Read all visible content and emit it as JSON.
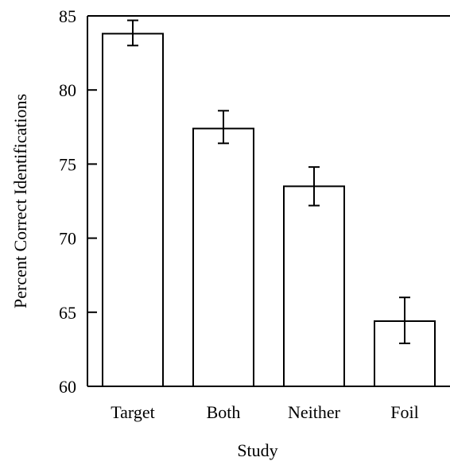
{
  "chart_data": {
    "type": "bar",
    "title": "",
    "xlabel": "Study",
    "ylabel": "Percent Correct Identifications",
    "categories": [
      "Target",
      "Both",
      "Neither",
      "Foil"
    ],
    "series": [
      {
        "values": [
          83.8,
          77.4,
          73.5,
          64.4
        ],
        "error_low": [
          83.0,
          76.4,
          72.2,
          62.9
        ],
        "error_high": [
          84.7,
          78.6,
          74.8,
          66.0
        ]
      }
    ],
    "ylim": [
      60,
      85
    ],
    "yticks": [
      60,
      65,
      70,
      75,
      80,
      85
    ],
    "grid": false,
    "legend": "none",
    "colors": {
      "bar_fill": "#ffffff",
      "bar_stroke": "#000000",
      "axis": "#000000"
    }
  }
}
